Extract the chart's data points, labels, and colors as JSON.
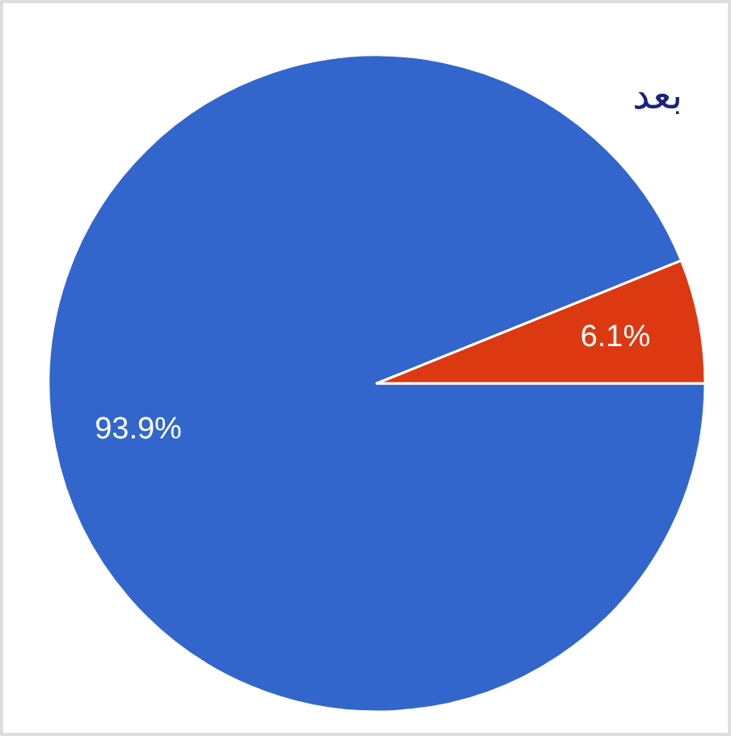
{
  "chart_data": {
    "type": "pie",
    "title": "بعد",
    "categories": [
      null,
      null
    ],
    "values": [
      93.9,
      6.1
    ],
    "value_labels": [
      "93.9%",
      "6.1%"
    ],
    "colors": [
      "#3366cc",
      "#dc3912"
    ]
  }
}
